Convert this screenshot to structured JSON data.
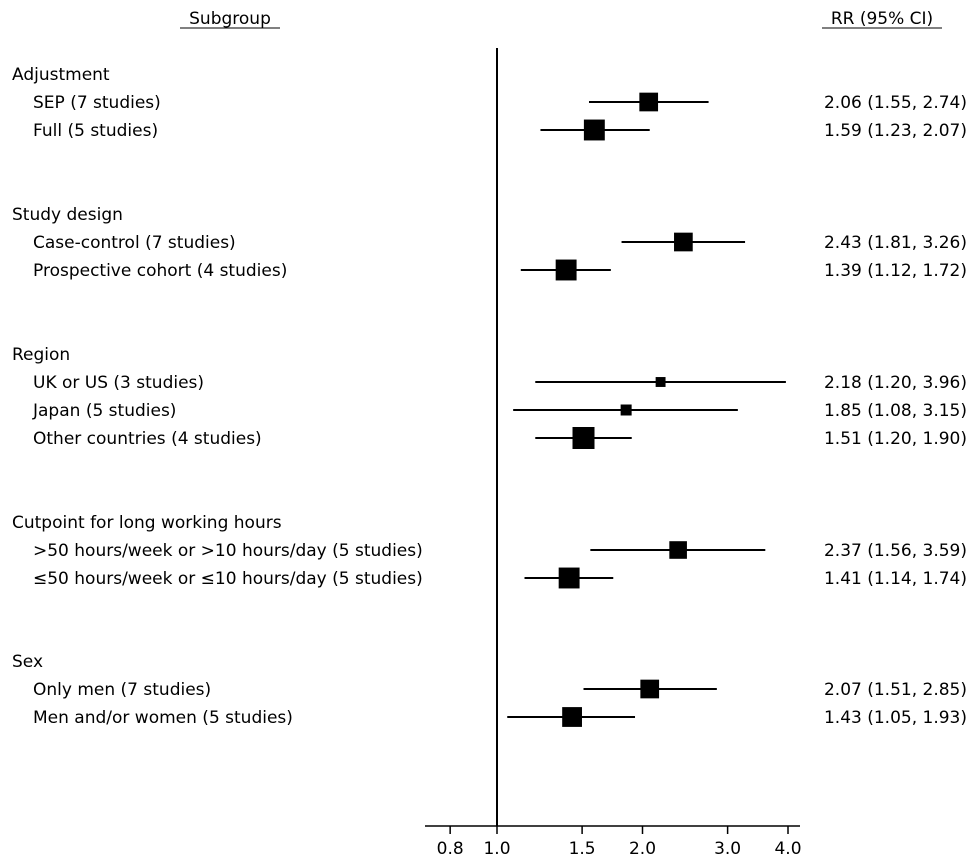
{
  "chart_data": {
    "type": "forest",
    "col_headers": {
      "subgroup": "Subgroup",
      "estimate": "RR (95% CI)"
    },
    "reference_line": 1.0,
    "x_scale": "log",
    "xlim": [
      0.8,
      4.0
    ],
    "x_ticks": [
      {
        "value": 0.8,
        "label": "0.8"
      },
      {
        "value": 1.0,
        "label": "1.0"
      },
      {
        "value": 1.5,
        "label": "1.5"
      },
      {
        "value": 2.0,
        "label": "2.0"
      },
      {
        "value": 3.0,
        "label": "3.0"
      },
      {
        "value": 4.0,
        "label": "4.0"
      }
    ],
    "groups": [
      {
        "title": "Adjustment",
        "rows": [
          {
            "label": "SEP (7 studies)",
            "rr": 2.06,
            "lo": 1.55,
            "hi": 2.74,
            "ci_text": "2.06 (1.55, 2.74)",
            "weight": 0.85
          },
          {
            "label": "Full (5 studies)",
            "rr": 1.59,
            "lo": 1.23,
            "hi": 2.07,
            "ci_text": "1.59 (1.23, 2.07)",
            "weight": 0.95
          }
        ]
      },
      {
        "title": "Study design",
        "rows": [
          {
            "label": "Case-control (7 studies)",
            "rr": 2.43,
            "lo": 1.81,
            "hi": 3.26,
            "ci_text": "2.43 (1.81, 3.26)",
            "weight": 0.85
          },
          {
            "label": "Prospective cohort (4 studies)",
            "rr": 1.39,
            "lo": 1.12,
            "hi": 1.72,
            "ci_text": "1.39 (1.12, 1.72)",
            "weight": 0.95
          }
        ]
      },
      {
        "title": "Region",
        "rows": [
          {
            "label": "UK or US (3 studies)",
            "rr": 2.18,
            "lo": 1.2,
            "hi": 3.96,
            "ci_text": "2.18 (1.20, 3.96)",
            "weight": 0.45
          },
          {
            "label": "Japan (5 studies)",
            "rr": 1.85,
            "lo": 1.08,
            "hi": 3.15,
            "ci_text": "1.85 (1.08, 3.15)",
            "weight": 0.5
          },
          {
            "label": "Other countries (4 studies)",
            "rr": 1.51,
            "lo": 1.2,
            "hi": 1.9,
            "ci_text": "1.51 (1.20, 1.90)",
            "weight": 1.0
          }
        ]
      },
      {
        "title": "Cutpoint for long working hours",
        "rows": [
          {
            "label": ">50 hours/week or >10 hours/day (5 studies)",
            "rr": 2.37,
            "lo": 1.56,
            "hi": 3.59,
            "ci_text": "2.37 (1.56, 3.59)",
            "weight": 0.8
          },
          {
            "label": "≤50 hours/week or ≤10 hours/day (5 studies)",
            "rr": 1.41,
            "lo": 1.14,
            "hi": 1.74,
            "ci_text": "1.41 (1.14, 1.74)",
            "weight": 0.95
          }
        ]
      },
      {
        "title": "Sex",
        "rows": [
          {
            "label": "Only men (7 studies)",
            "rr": 2.07,
            "lo": 1.51,
            "hi": 2.85,
            "ci_text": "2.07 (1.51, 2.85)",
            "weight": 0.85
          },
          {
            "label": "Men and/or women (5 studies)",
            "rr": 1.43,
            "lo": 1.05,
            "hi": 1.93,
            "ci_text": "1.43 (1.05, 1.93)",
            "weight": 0.9
          }
        ]
      }
    ]
  }
}
